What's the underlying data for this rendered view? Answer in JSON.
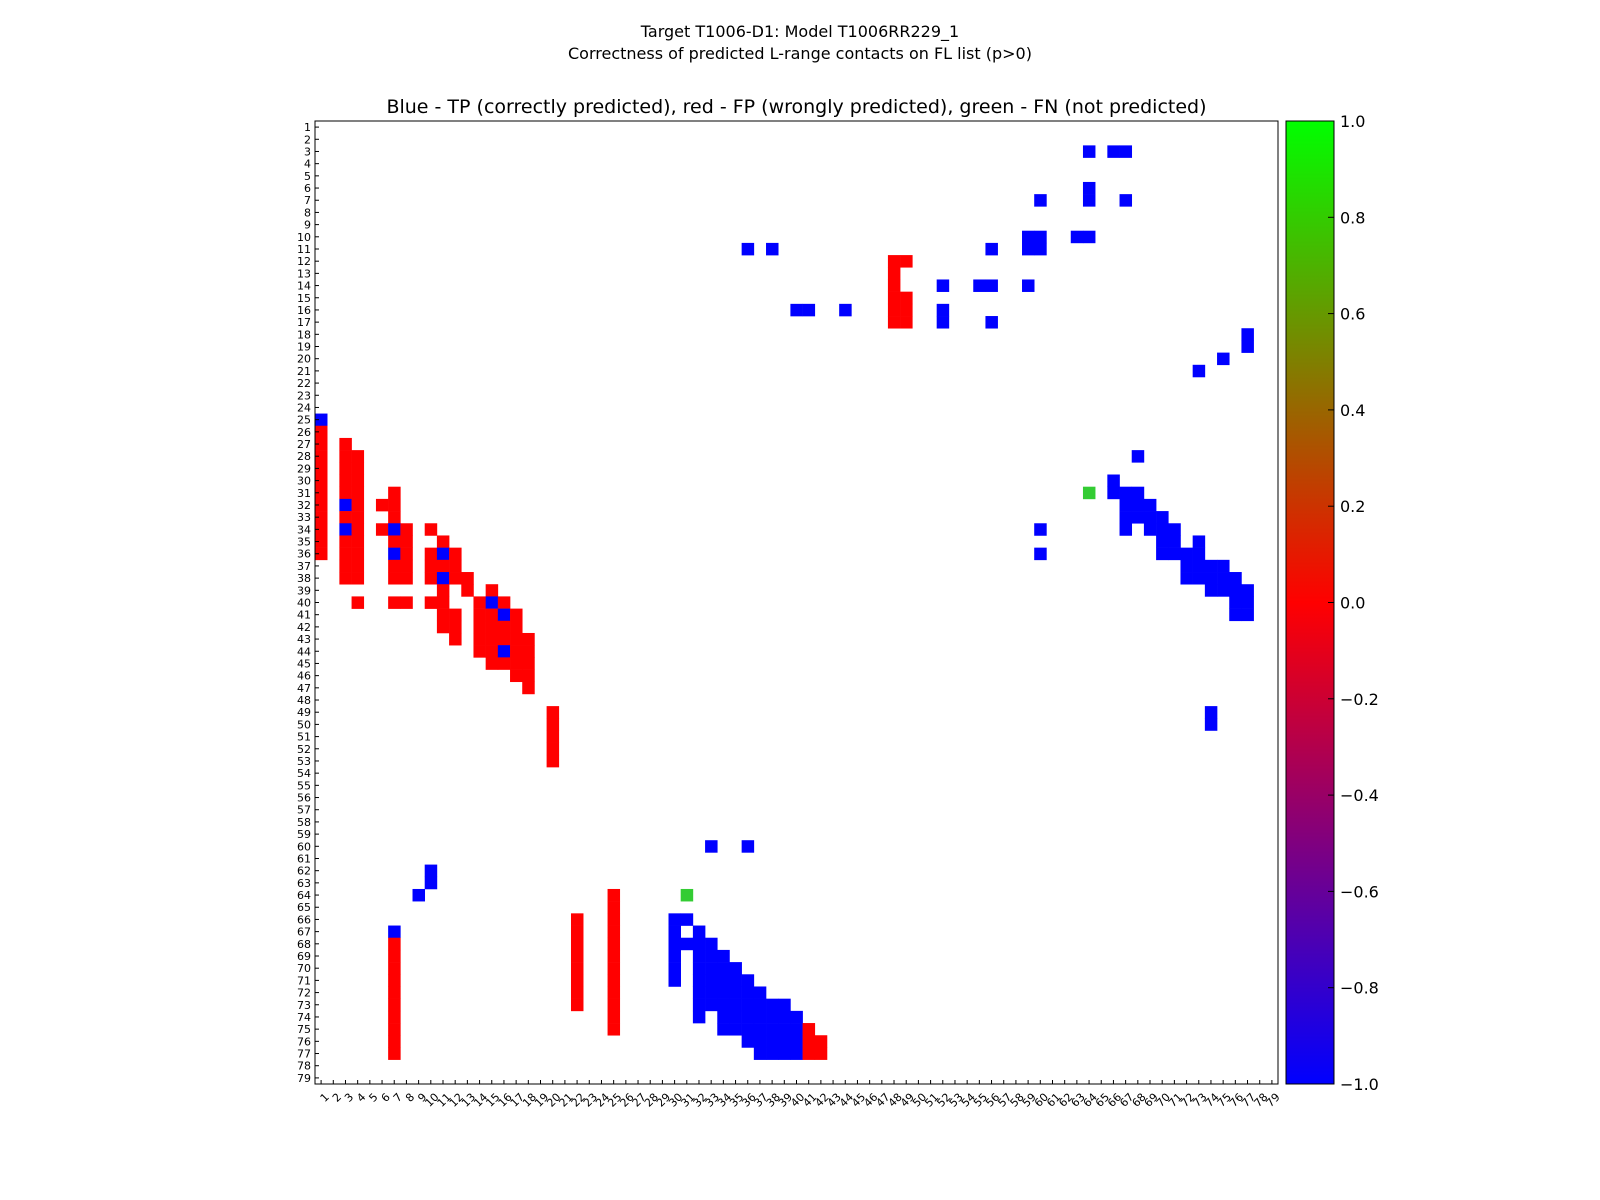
{
  "chart_data": {
    "type": "heatmap",
    "title_line1": "Target T1006-D1: Model T1006RR229_1",
    "title_line2": "Correctness of predicted L-range contacts on FL list (p>0)",
    "axes_title": "Blue - TP (correctly predicted), red - FP (wrongly predicted), green - FN (not predicted)",
    "n": 79,
    "tick_labels": [
      "1",
      "2",
      "3",
      "4",
      "5",
      "6",
      "7",
      "8",
      "9",
      "10",
      "11",
      "12",
      "13",
      "14",
      "15",
      "16",
      "17",
      "18",
      "19",
      "20",
      "21",
      "22",
      "23",
      "24",
      "25",
      "26",
      "27",
      "28",
      "29",
      "30",
      "31",
      "32",
      "33",
      "34",
      "35",
      "36",
      "37",
      "38",
      "39",
      "40",
      "41",
      "42",
      "43",
      "44",
      "45",
      "46",
      "47",
      "48",
      "49",
      "50",
      "51",
      "52",
      "53",
      "54",
      "55",
      "56",
      "57",
      "58",
      "59",
      "60",
      "61",
      "62",
      "63",
      "64",
      "65",
      "66",
      "67",
      "68",
      "69",
      "70",
      "71",
      "72",
      "73",
      "74",
      "75",
      "76",
      "77",
      "78",
      "79"
    ],
    "colorbar": {
      "min": -1.0,
      "max": 1.0,
      "ticks": [
        "1.0",
        "0.8",
        "0.6",
        "0.4",
        "0.2",
        "0.0",
        "−0.2",
        "−0.4",
        "−0.6",
        "−0.8",
        "−1.0"
      ],
      "tick_values": [
        1.0,
        0.8,
        0.6,
        0.4,
        0.2,
        0.0,
        -0.2,
        -0.4,
        -0.6,
        -0.8,
        -1.0
      ],
      "stops": [
        "#0000ff",
        "#ff0000",
        "#00ff00"
      ]
    },
    "legend": {
      "tp": -1,
      "fp": 0,
      "fn": 1
    },
    "colors": {
      "tp": "#0000ff",
      "fp": "#ff0000",
      "fn": "#33cc33"
    },
    "cells_lower": [
      [
        25,
        1,
        -1
      ],
      [
        26,
        1,
        0
      ],
      [
        27,
        1,
        0
      ],
      [
        28,
        1,
        0
      ],
      [
        29,
        1,
        0
      ],
      [
        30,
        1,
        0
      ],
      [
        31,
        1,
        0
      ],
      [
        32,
        1,
        0
      ],
      [
        33,
        1,
        0
      ],
      [
        34,
        1,
        0
      ],
      [
        35,
        1,
        0
      ],
      [
        36,
        1,
        0
      ],
      [
        27,
        3,
        0
      ],
      [
        28,
        3,
        0
      ],
      [
        29,
        3,
        0
      ],
      [
        30,
        3,
        0
      ],
      [
        31,
        3,
        0
      ],
      [
        32,
        3,
        -1
      ],
      [
        33,
        3,
        0
      ],
      [
        34,
        3,
        -1
      ],
      [
        35,
        3,
        0
      ],
      [
        36,
        3,
        0
      ],
      [
        37,
        3,
        0
      ],
      [
        38,
        3,
        0
      ],
      [
        28,
        4,
        0
      ],
      [
        29,
        4,
        0
      ],
      [
        30,
        4,
        0
      ],
      [
        31,
        4,
        0
      ],
      [
        32,
        4,
        0
      ],
      [
        33,
        4,
        0
      ],
      [
        34,
        4,
        0
      ],
      [
        35,
        4,
        0
      ],
      [
        36,
        4,
        0
      ],
      [
        37,
        4,
        0
      ],
      [
        38,
        4,
        0
      ],
      [
        40,
        4,
        0
      ],
      [
        32,
        6,
        0
      ],
      [
        34,
        6,
        0
      ],
      [
        31,
        7,
        0
      ],
      [
        32,
        7,
        0
      ],
      [
        33,
        7,
        0
      ],
      [
        34,
        7,
        -1
      ],
      [
        35,
        7,
        0
      ],
      [
        36,
        7,
        -1
      ],
      [
        37,
        7,
        0
      ],
      [
        38,
        7,
        0
      ],
      [
        40,
        7,
        0
      ],
      [
        35,
        8,
        0
      ],
      [
        36,
        8,
        0
      ],
      [
        37,
        8,
        0
      ],
      [
        38,
        8,
        0
      ],
      [
        40,
        8,
        0
      ],
      [
        34,
        8,
        0
      ],
      [
        34,
        10,
        0
      ],
      [
        36,
        10,
        0
      ],
      [
        37,
        10,
        0
      ],
      [
        38,
        10,
        0
      ],
      [
        40,
        10,
        0
      ],
      [
        35,
        11,
        0
      ],
      [
        36,
        11,
        -1
      ],
      [
        37,
        11,
        0
      ],
      [
        38,
        11,
        -1
      ],
      [
        39,
        11,
        0
      ],
      [
        40,
        11,
        0
      ],
      [
        41,
        11,
        0
      ],
      [
        42,
        11,
        0
      ],
      [
        36,
        12,
        0
      ],
      [
        37,
        12,
        0
      ],
      [
        38,
        12,
        0
      ],
      [
        41,
        12,
        0
      ],
      [
        42,
        12,
        0
      ],
      [
        43,
        12,
        0
      ],
      [
        38,
        13,
        0
      ],
      [
        39,
        13,
        0
      ],
      [
        40,
        14,
        0
      ],
      [
        41,
        14,
        0
      ],
      [
        42,
        14,
        0
      ],
      [
        43,
        14,
        0
      ],
      [
        44,
        14,
        0
      ],
      [
        39,
        15,
        0
      ],
      [
        40,
        15,
        -1
      ],
      [
        41,
        15,
        0
      ],
      [
        42,
        15,
        0
      ],
      [
        43,
        15,
        0
      ],
      [
        44,
        15,
        0
      ],
      [
        45,
        15,
        0
      ],
      [
        40,
        16,
        0
      ],
      [
        41,
        16,
        -1
      ],
      [
        42,
        16,
        0
      ],
      [
        43,
        16,
        0
      ],
      [
        44,
        16,
        -1
      ],
      [
        45,
        16,
        0
      ],
      [
        41,
        17,
        0
      ],
      [
        42,
        17,
        0
      ],
      [
        43,
        17,
        0
      ],
      [
        44,
        17,
        0
      ],
      [
        45,
        17,
        0
      ],
      [
        46,
        17,
        0
      ],
      [
        43,
        18,
        0
      ],
      [
        44,
        18,
        0
      ],
      [
        45,
        18,
        0
      ],
      [
        46,
        18,
        0
      ],
      [
        47,
        18,
        0
      ],
      [
        49,
        20,
        0
      ],
      [
        50,
        20,
        0
      ],
      [
        51,
        20,
        0
      ],
      [
        52,
        20,
        0
      ],
      [
        53,
        20,
        0
      ],
      [
        66,
        22,
        0
      ],
      [
        67,
        22,
        0
      ],
      [
        68,
        22,
        0
      ],
      [
        69,
        22,
        0
      ],
      [
        70,
        22,
        0
      ],
      [
        71,
        22,
        0
      ],
      [
        72,
        22,
        0
      ],
      [
        73,
        22,
        0
      ],
      [
        64,
        25,
        0
      ],
      [
        65,
        25,
        0
      ],
      [
        66,
        25,
        0
      ],
      [
        67,
        25,
        0
      ],
      [
        68,
        25,
        0
      ],
      [
        69,
        25,
        0
      ],
      [
        70,
        25,
        0
      ],
      [
        71,
        25,
        0
      ],
      [
        72,
        25,
        0
      ],
      [
        73,
        25,
        0
      ],
      [
        74,
        25,
        0
      ],
      [
        75,
        25,
        0
      ],
      [
        66,
        30,
        -1
      ],
      [
        67,
        30,
        -1
      ],
      [
        68,
        30,
        -1
      ],
      [
        69,
        30,
        -1
      ],
      [
        70,
        30,
        -1
      ],
      [
        71,
        30,
        -1
      ],
      [
        68,
        31,
        -1
      ],
      [
        66,
        31,
        -1
      ],
      [
        64,
        31,
        1
      ],
      [
        67,
        32,
        -1
      ],
      [
        68,
        32,
        -1
      ],
      [
        69,
        32,
        -1
      ],
      [
        70,
        32,
        -1
      ],
      [
        71,
        32,
        -1
      ],
      [
        72,
        32,
        -1
      ],
      [
        73,
        32,
        -1
      ],
      [
        74,
        32,
        -1
      ],
      [
        68,
        33,
        -1
      ],
      [
        69,
        33,
        -1
      ],
      [
        70,
        33,
        -1
      ],
      [
        71,
        33,
        -1
      ],
      [
        72,
        33,
        -1
      ],
      [
        73,
        33,
        -1
      ],
      [
        60,
        33,
        -1
      ],
      [
        69,
        34,
        -1
      ],
      [
        70,
        34,
        -1
      ],
      [
        71,
        34,
        -1
      ],
      [
        72,
        34,
        -1
      ],
      [
        73,
        34,
        -1
      ],
      [
        74,
        34,
        -1
      ],
      [
        75,
        34,
        -1
      ],
      [
        60,
        36,
        -1
      ],
      [
        70,
        35,
        -1
      ],
      [
        71,
        35,
        -1
      ],
      [
        72,
        35,
        -1
      ],
      [
        73,
        35,
        -1
      ],
      [
        74,
        35,
        -1
      ],
      [
        75,
        35,
        -1
      ],
      [
        71,
        36,
        -1
      ],
      [
        72,
        36,
        -1
      ],
      [
        73,
        36,
        -1
      ],
      [
        74,
        36,
        -1
      ],
      [
        75,
        36,
        -1
      ],
      [
        76,
        36,
        -1
      ],
      [
        72,
        37,
        -1
      ],
      [
        73,
        37,
        -1
      ],
      [
        74,
        37,
        -1
      ],
      [
        75,
        37,
        -1
      ],
      [
        76,
        37,
        -1
      ],
      [
        77,
        37,
        -1
      ],
      [
        73,
        38,
        -1
      ],
      [
        74,
        38,
        -1
      ],
      [
        75,
        38,
        -1
      ],
      [
        76,
        38,
        -1
      ],
      [
        77,
        38,
        -1
      ],
      [
        73,
        39,
        -1
      ],
      [
        74,
        39,
        -1
      ],
      [
        75,
        39,
        -1
      ],
      [
        76,
        39,
        -1
      ],
      [
        77,
        39,
        -1
      ],
      [
        74,
        40,
        -1
      ],
      [
        75,
        40,
        -1
      ],
      [
        76,
        40,
        -1
      ],
      [
        77,
        40,
        -1
      ],
      [
        75,
        41,
        0
      ],
      [
        76,
        41,
        0
      ],
      [
        77,
        41,
        0
      ],
      [
        76,
        42,
        0
      ],
      [
        77,
        42,
        0
      ],
      [
        62,
        10,
        -1
      ],
      [
        63,
        10,
        -1
      ],
      [
        64,
        9,
        -1
      ],
      [
        67,
        7,
        -1
      ],
      [
        68,
        7,
        0
      ],
      [
        69,
        7,
        0
      ],
      [
        70,
        7,
        0
      ],
      [
        71,
        7,
        0
      ],
      [
        72,
        7,
        0
      ],
      [
        73,
        7,
        0
      ],
      [
        74,
        7,
        0
      ],
      [
        75,
        7,
        0
      ],
      [
        76,
        7,
        0
      ],
      [
        77,
        7,
        0
      ],
      [
        12,
        48,
        0
      ],
      [
        13,
        48,
        0
      ],
      [
        12,
        49,
        0
      ],
      [
        14,
        48,
        0
      ],
      [
        15,
        48,
        0
      ],
      [
        16,
        48,
        0
      ],
      [
        17,
        48,
        0
      ],
      [
        15,
        49,
        0
      ],
      [
        16,
        49,
        0
      ],
      [
        17,
        49,
        0
      ],
      [
        14,
        52,
        -1
      ],
      [
        16,
        52,
        -1
      ],
      [
        17,
        52,
        -1
      ],
      [
        14,
        55,
        -1
      ],
      [
        14,
        56,
        -1
      ],
      [
        14,
        59,
        -1
      ],
      [
        10,
        59,
        -1
      ],
      [
        11,
        59,
        -1
      ],
      [
        10,
        60,
        -1
      ],
      [
        11,
        60,
        -1
      ],
      [
        10,
        63,
        -1
      ],
      [
        10,
        64,
        -1
      ],
      [
        6,
        64,
        -1
      ],
      [
        7,
        64,
        -1
      ],
      [
        3,
        64,
        -1
      ],
      [
        3,
        66,
        -1
      ],
      [
        3,
        67,
        -1
      ],
      [
        7,
        67,
        -1
      ],
      [
        7,
        60,
        -1
      ],
      [
        11,
        56,
        -1
      ],
      [
        17,
        56,
        -1
      ],
      [
        31,
        64,
        1
      ],
      [
        34,
        60,
        -1
      ],
      [
        36,
        60,
        -1
      ],
      [
        16,
        40,
        -1
      ],
      [
        16,
        41,
        -1
      ],
      [
        16,
        44,
        -1
      ],
      [
        11,
        36,
        -1
      ],
      [
        11,
        38,
        -1
      ],
      [
        30,
        66,
        -1
      ],
      [
        31,
        66,
        -1
      ],
      [
        31,
        67,
        -1
      ],
      [
        32,
        67,
        -1
      ],
      [
        33,
        67,
        -1
      ],
      [
        34,
        67,
        -1
      ],
      [
        31,
        68,
        -1
      ],
      [
        32,
        68,
        -1
      ],
      [
        33,
        68,
        -1
      ],
      [
        28,
        68,
        -1
      ],
      [
        32,
        69,
        -1
      ],
      [
        33,
        69,
        -1
      ],
      [
        34,
        69,
        -1
      ],
      [
        33,
        70,
        -1
      ],
      [
        34,
        70,
        -1
      ],
      [
        35,
        70,
        -1
      ],
      [
        36,
        70,
        -1
      ],
      [
        34,
        71,
        -1
      ],
      [
        35,
        71,
        -1
      ],
      [
        36,
        71,
        -1
      ],
      [
        36,
        72,
        -1
      ],
      [
        37,
        72,
        -1
      ],
      [
        38,
        72,
        -1
      ],
      [
        35,
        73,
        -1
      ],
      [
        36,
        73,
        -1
      ],
      [
        37,
        73,
        -1
      ],
      [
        38,
        73,
        -1
      ],
      [
        37,
        74,
        -1
      ],
      [
        38,
        74,
        -1
      ],
      [
        39,
        74,
        -1
      ],
      [
        37,
        75,
        -1
      ],
      [
        38,
        75,
        -1
      ],
      [
        39,
        75,
        -1
      ],
      [
        38,
        76,
        -1
      ],
      [
        39,
        76,
        -1
      ],
      [
        40,
        76,
        -1
      ],
      [
        41,
        76,
        -1
      ],
      [
        39,
        77,
        -1
      ],
      [
        40,
        77,
        -1
      ],
      [
        41,
        77,
        -1
      ],
      [
        49,
        74,
        -1
      ],
      [
        50,
        74,
        -1
      ],
      [
        21,
        73,
        -1
      ],
      [
        20,
        75,
        -1
      ],
      [
        18,
        77,
        -1
      ],
      [
        19,
        77,
        -1
      ]
    ]
  }
}
